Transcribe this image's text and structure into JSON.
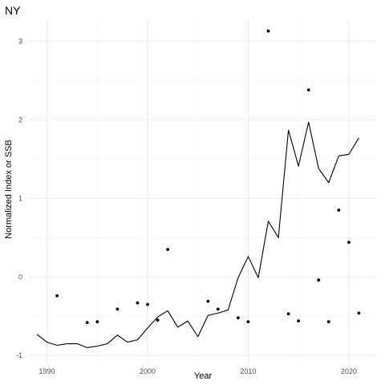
{
  "chart_data": {
    "type": "line",
    "title": "NY",
    "xlabel": "Year",
    "ylabel": "Normalized Index or SSB",
    "xlim": [
      1988.2,
      2022.8
    ],
    "ylim": [
      -1.12,
      3.28
    ],
    "x_ticks": [
      1990,
      2000,
      2010,
      2020
    ],
    "y_ticks": [
      -1,
      0,
      1,
      2,
      3
    ],
    "grid": true,
    "legend": "none",
    "series": [
      {
        "kind": "line",
        "color": "#000000",
        "points": [
          [
            1989,
            -0.73
          ],
          [
            1990,
            -0.83
          ],
          [
            1991,
            -0.87
          ],
          [
            1992,
            -0.85
          ],
          [
            1993,
            -0.85
          ],
          [
            1994,
            -0.9
          ],
          [
            1995,
            -0.88
          ],
          [
            1996,
            -0.85
          ],
          [
            1997,
            -0.74
          ],
          [
            1998,
            -0.83
          ],
          [
            1999,
            -0.8
          ],
          [
            2000,
            -0.65
          ],
          [
            2001,
            -0.51
          ],
          [
            2002,
            -0.43
          ],
          [
            2003,
            -0.64
          ],
          [
            2004,
            -0.56
          ],
          [
            2005,
            -0.76
          ],
          [
            2006,
            -0.49
          ],
          [
            2007,
            -0.46
          ],
          [
            2008,
            -0.42
          ],
          [
            2009,
            -0.01
          ],
          [
            2010,
            0.26
          ],
          [
            2011,
            -0.01
          ],
          [
            2012,
            0.71
          ],
          [
            2013,
            0.5
          ],
          [
            2014,
            1.87
          ],
          [
            2015,
            1.41
          ],
          [
            2016,
            1.97
          ],
          [
            2017,
            1.38
          ],
          [
            2018,
            1.2
          ],
          [
            2019,
            1.54
          ],
          [
            2020,
            1.56
          ],
          [
            2021,
            1.77
          ]
        ]
      },
      {
        "kind": "points",
        "color": "#000000",
        "points": [
          [
            1991,
            -0.24
          ],
          [
            1994,
            -0.58
          ],
          [
            1995,
            -0.57
          ],
          [
            1997,
            -0.41
          ],
          [
            1999,
            -0.33
          ],
          [
            2000,
            -0.35
          ],
          [
            2001,
            -0.55
          ],
          [
            2002,
            0.35
          ],
          [
            2006,
            -0.31
          ],
          [
            2007,
            -0.41
          ],
          [
            2009,
            -0.52
          ],
          [
            2010,
            -0.57
          ],
          [
            2012,
            3.13
          ],
          [
            2014,
            -0.47
          ],
          [
            2015,
            -0.56
          ],
          [
            2016,
            2.38
          ],
          [
            2017,
            -0.04
          ],
          [
            2018,
            -0.57
          ],
          [
            2019,
            0.85
          ],
          [
            2020,
            0.44
          ],
          [
            2021,
            -0.46
          ]
        ]
      }
    ]
  }
}
